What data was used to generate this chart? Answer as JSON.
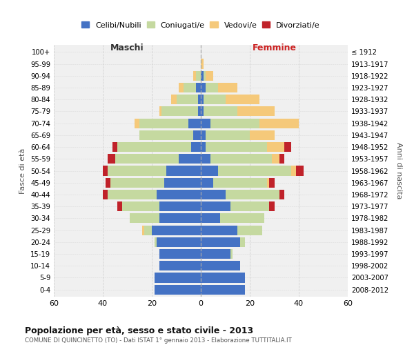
{
  "age_groups": [
    "0-4",
    "5-9",
    "10-14",
    "15-19",
    "20-24",
    "25-29",
    "30-34",
    "35-39",
    "40-44",
    "45-49",
    "50-54",
    "55-59",
    "60-64",
    "65-69",
    "70-74",
    "75-79",
    "80-84",
    "85-89",
    "90-94",
    "95-99",
    "100+"
  ],
  "birth_years": [
    "2008-2012",
    "2003-2007",
    "1998-2002",
    "1993-1997",
    "1988-1992",
    "1983-1987",
    "1978-1982",
    "1973-1977",
    "1968-1972",
    "1963-1967",
    "1958-1962",
    "1953-1957",
    "1948-1952",
    "1943-1947",
    "1938-1942",
    "1933-1937",
    "1928-1932",
    "1923-1927",
    "1918-1922",
    "1913-1917",
    "≤ 1912"
  ],
  "colors": {
    "celibe": "#4472c4",
    "coniugato": "#c5d9a0",
    "vedovo": "#f5c97a",
    "divorziato": "#c0222a"
  },
  "maschi": {
    "celibe": [
      19,
      19,
      17,
      17,
      18,
      20,
      17,
      17,
      18,
      15,
      14,
      9,
      4,
      3,
      5,
      1,
      1,
      2,
      0,
      0,
      0
    ],
    "coniugato": [
      0,
      0,
      0,
      0,
      1,
      3,
      12,
      15,
      20,
      22,
      24,
      26,
      30,
      22,
      20,
      15,
      9,
      5,
      2,
      0,
      0
    ],
    "vedovo": [
      0,
      0,
      0,
      0,
      0,
      1,
      0,
      0,
      0,
      0,
      0,
      0,
      0,
      0,
      2,
      1,
      2,
      2,
      1,
      0,
      0
    ],
    "divorziato": [
      0,
      0,
      0,
      0,
      0,
      0,
      0,
      2,
      2,
      2,
      2,
      3,
      2,
      0,
      0,
      0,
      0,
      0,
      0,
      0,
      0
    ]
  },
  "femmine": {
    "nubile": [
      18,
      18,
      16,
      12,
      16,
      15,
      8,
      12,
      10,
      5,
      7,
      4,
      2,
      2,
      4,
      1,
      1,
      2,
      1,
      0,
      0
    ],
    "coniugata": [
      0,
      0,
      0,
      1,
      2,
      10,
      18,
      16,
      22,
      22,
      30,
      25,
      25,
      18,
      20,
      14,
      9,
      5,
      1,
      0,
      0
    ],
    "vedova": [
      0,
      0,
      0,
      0,
      0,
      0,
      0,
      0,
      0,
      1,
      2,
      3,
      7,
      10,
      16,
      15,
      14,
      8,
      3,
      1,
      0
    ],
    "divorziata": [
      0,
      0,
      0,
      0,
      0,
      0,
      0,
      2,
      2,
      2,
      3,
      2,
      3,
      0,
      0,
      0,
      0,
      0,
      0,
      0,
      0
    ]
  },
  "title": "Popolazione per età, sesso e stato civile - 2013",
  "subtitle": "COMUNE DI QUINCINETTO (TO) - Dati ISTAT 1° gennaio 2013 - Elaborazione TUTTITALIA.IT",
  "ylabel_left": "Fasce di età",
  "ylabel_right": "Anni di nascita",
  "xlabel_left": "Maschi",
  "xlabel_right": "Femmine",
  "legend_labels": [
    "Celibi/Nubili",
    "Coniugati/e",
    "Vedovi/e",
    "Divorziati/e"
  ],
  "xlim": 60,
  "background_color": "#ffffff",
  "plot_bg": "#f0f0f0",
  "grid_color": "#cccccc"
}
